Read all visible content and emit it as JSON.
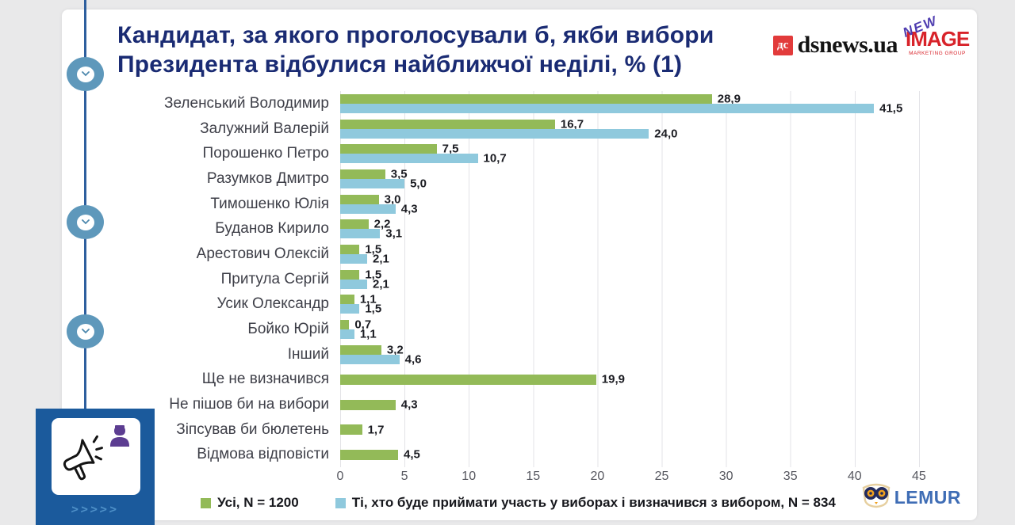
{
  "header": {
    "title": "Кандидат, за якого проголосували б, якби вибори Президента відбулися найближчої неділі, % (1)",
    "dsnews_badge": "дс",
    "dsnews_name": "dsnews.ua",
    "newimage": {
      "new": "NEW",
      "image": "IMAGE",
      "sub": "MARKETING GROUP"
    }
  },
  "footer": {
    "lemur_name": "LEMUR",
    "slide_chevrons": ">>>>>"
  },
  "colors": {
    "background": "#e9e9ea",
    "card": "#ffffff",
    "title_navy": "#1a2b73",
    "timeline_blue": "#2e5f9e",
    "bullet_blue": "#5e98bb",
    "promo_blue": "#1b5a9c",
    "dsnews_red": "#e23b3b",
    "image_red": "#d8232a",
    "new_purple": "#4f3db0",
    "lemur_blue": "#3f6db5"
  },
  "chart_data": {
    "type": "bar",
    "orientation": "horizontal",
    "title": "Кандидат, за якого проголосували б, якби вибори Президента відбулися найближчої неділі, % (1)",
    "categories": [
      "Зеленський Володимир",
      "Залужний Валерій",
      "Порошенко Петро",
      "Разумков Дмитро",
      "Тимошенко Юлія",
      "Буданов Кирило",
      "Арестович Олексій",
      "Притула Сергій",
      "Усик Олександр",
      "Бойко Юрій",
      "Інший",
      "Ще не визначився",
      "Не пішов би на вибори",
      "Зіпсував би бюлетень",
      "Відмова відповісти"
    ],
    "series": [
      {
        "name": "Усі, N = 1200",
        "color": "#93ba58",
        "values": [
          28.9,
          16.7,
          7.5,
          3.5,
          3.0,
          2.2,
          1.5,
          1.5,
          1.1,
          0.7,
          3.2,
          19.9,
          4.3,
          1.7,
          4.5
        ]
      },
      {
        "name": "Ті, хто буде приймати участь у виборах і визначився з вибором, N = 834",
        "color": "#8fc9dd",
        "values": [
          41.5,
          24.0,
          10.7,
          5.0,
          4.3,
          3.1,
          2.1,
          2.1,
          1.5,
          1.1,
          4.6,
          null,
          null,
          null,
          null
        ]
      }
    ],
    "xticks": [
      0,
      5,
      10,
      15,
      20,
      25,
      30,
      35,
      40,
      45
    ],
    "xlim": [
      0,
      45
    ],
    "decimal_separator": ",",
    "grid": "vertical",
    "legend_position": "bottom"
  }
}
